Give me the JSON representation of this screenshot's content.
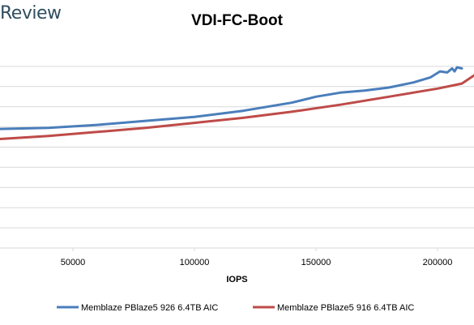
{
  "brand": "Review",
  "chart_data": {
    "type": "line",
    "title": "VDI-FC-Boot",
    "xlabel": "IOPS",
    "ylabel": "",
    "xlim": [
      20000,
      215000
    ],
    "ylim": [
      0,
      10
    ],
    "x_ticks": [
      50000,
      100000,
      150000,
      200000
    ],
    "x_tick_labels": [
      "50000",
      "100000",
      "150000",
      "200000"
    ],
    "y_gridlines": [
      1,
      2,
      3,
      4,
      5,
      6,
      7,
      8,
      9
    ],
    "grid": true,
    "legend_position": "bottom",
    "colors": {
      "series_1": "#4a7ebb",
      "series_2": "#be4b48",
      "grid": "#d9d9d9"
    },
    "series": [
      {
        "name": "Memblaze PBlaze5 926 6.4TB AIC",
        "x": [
          20000,
          40000,
          60000,
          80000,
          100000,
          120000,
          140000,
          150000,
          160000,
          170000,
          180000,
          190000,
          197000,
          201000,
          204000,
          206000,
          207000,
          208000,
          210000
        ],
        "y": [
          5.9,
          5.95,
          6.1,
          6.3,
          6.5,
          6.8,
          7.2,
          7.5,
          7.7,
          7.8,
          7.95,
          8.2,
          8.45,
          8.75,
          8.7,
          8.9,
          8.75,
          8.95,
          8.9
        ]
      },
      {
        "name": "Memblaze PBlaze5 916 6.4TB AIC",
        "x": [
          20000,
          40000,
          60000,
          80000,
          100000,
          120000,
          140000,
          160000,
          180000,
          200000,
          210000,
          215000
        ],
        "y": [
          5.4,
          5.55,
          5.75,
          5.95,
          6.2,
          6.45,
          6.75,
          7.1,
          7.5,
          7.9,
          8.15,
          8.55
        ]
      }
    ]
  }
}
